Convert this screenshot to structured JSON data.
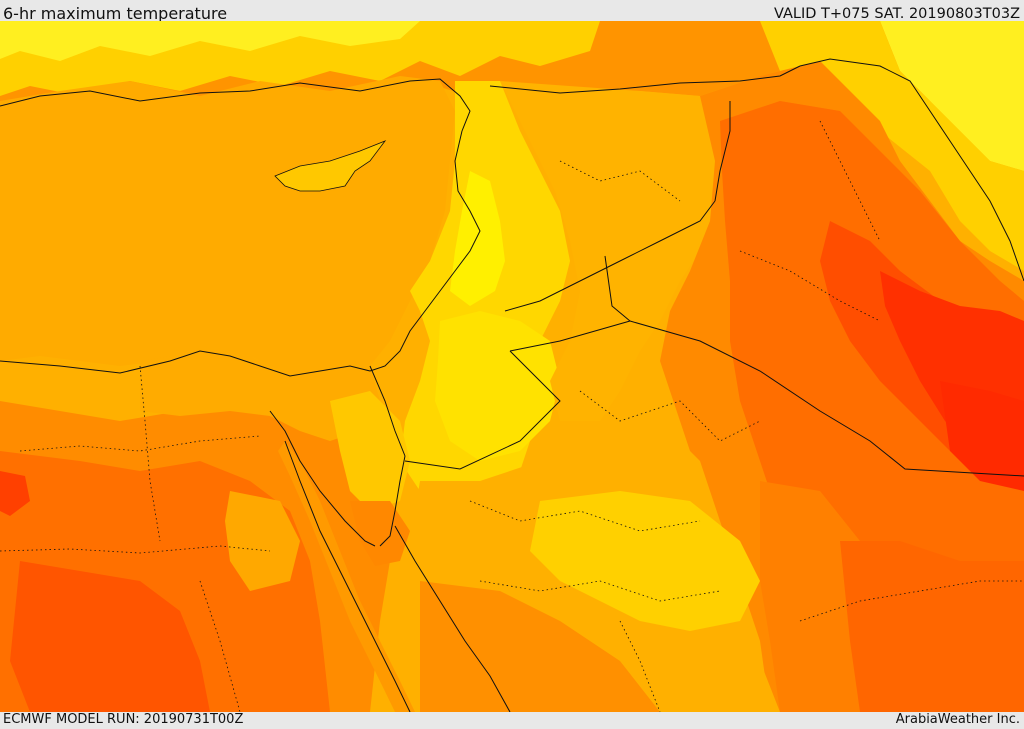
{
  "header": {
    "title": "6-hr maximum temperature",
    "valid": "VALID T+075 SAT. 20190803T03Z"
  },
  "footer": {
    "model_run": "ECMWF MODEL RUN: 20190731T00Z",
    "credit": "ArabiaWeather Inc."
  },
  "map": {
    "variable": "6-hr maximum temperature",
    "palette": {
      "pale_yellow": "#ffff33",
      "yellow": "#ffe000",
      "light_orange": "#ffb000",
      "orange": "#ff8c00",
      "dark_orange": "#ff6a00",
      "red_orange": "#ff4d00",
      "red": "#ff2a00"
    },
    "border_color": "#111111"
  }
}
